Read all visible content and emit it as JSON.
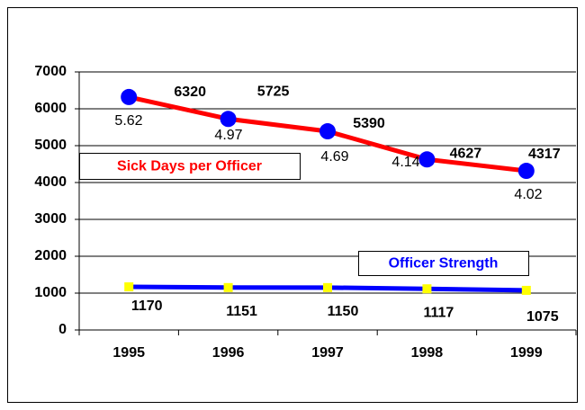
{
  "chart_data": {
    "type": "line",
    "categories": [
      "1995",
      "1996",
      "1997",
      "1998",
      "1999"
    ],
    "series": [
      {
        "name": "Sick Days per Officer",
        "color": "#ff0000",
        "marker_color": "#0000ff",
        "values": [
          6320,
          5725,
          5390,
          4627,
          4317
        ]
      },
      {
        "name": "Officer Strength",
        "color": "#0000ff",
        "marker_color": "#ffff00",
        "values": [
          1170,
          1151,
          1150,
          1117,
          1075
        ]
      }
    ],
    "annotations": [
      "5.62",
      "4.97",
      "4.69",
      "4.14",
      "4.02"
    ],
    "ylim": [
      0,
      7000
    ],
    "yticks": [
      0,
      1000,
      2000,
      3000,
      4000,
      5000,
      6000,
      7000
    ],
    "grid": true
  }
}
